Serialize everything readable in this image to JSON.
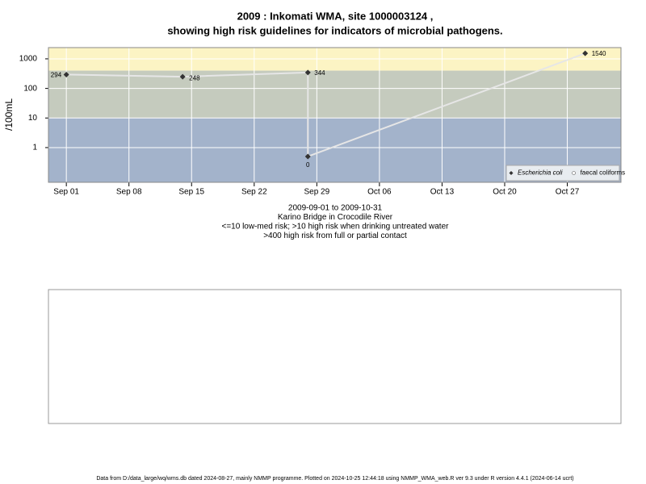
{
  "chart_data": {
    "type": "line",
    "title": "2009 : Inkomati WMA, site 1000003124 ,",
    "subtitle": "showing high risk guidelines for indicators of microbial pathogens.",
    "y_label": "/100mL",
    "notes": [
      "2009-09-01 to 2009-10-31",
      "Karino Bridge in Crocodile River",
      "<=10 low-med risk; >10 high risk when drinking untreated water",
      ">400 high risk from full or partial contact"
    ],
    "x": [
      "2009-09-01",
      "2009-09-14",
      "2009-09-28",
      "2009-09-28",
      "2009-10-29"
    ],
    "series": [
      {
        "name": "Escherichia coli",
        "color": "#333333",
        "line_color": "#e6e6e6",
        "values": [
          294,
          248,
          344,
          0.5,
          1540
        ],
        "value_labels": [
          "294",
          "248",
          "344",
          "0",
          "1540"
        ]
      },
      {
        "name": "faecal coliforms",
        "color": "#ffffff",
        "values": [
          null,
          null,
          null,
          null,
          null
        ]
      }
    ],
    "xlim": [
      "2009-08-30",
      "2009-11-02"
    ],
    "xticks": [
      {
        "value": "2009-09-01",
        "label": "Sep 01"
      },
      {
        "value": "2009-09-08",
        "label": "Sep 08"
      },
      {
        "value": "2009-09-15",
        "label": "Sep 15"
      },
      {
        "value": "2009-09-22",
        "label": "Sep 22"
      },
      {
        "value": "2009-09-29",
        "label": "Sep 29"
      },
      {
        "value": "2009-10-06",
        "label": "Oct 06"
      },
      {
        "value": "2009-10-13",
        "label": "Oct 13"
      },
      {
        "value": "2009-10-20",
        "label": "Oct 20"
      },
      {
        "value": "2009-10-27",
        "label": "Oct 27"
      }
    ],
    "ylim": [
      0.067,
      2400
    ],
    "yticks": [
      1,
      10,
      100,
      1000
    ],
    "ylog": true,
    "grid": true,
    "legend": "bottom-right",
    "bands": [
      {
        "to": 10,
        "color": "#a3b3cb"
      },
      {
        "from": 10,
        "to": 400,
        "color": "#c5cbbe"
      },
      {
        "from": 400,
        "color": "#fcf4c4"
      }
    ]
  },
  "footer": "Data from D:/data_large/wq/wms.db dated 2024-08-27, mainly NMMP programme. Plotted on 2024-10-25 12:44:18 using NMMP_WMA_web.R ver 9.3 under R version 4.4.1 (2024-06-14 ucrt)"
}
